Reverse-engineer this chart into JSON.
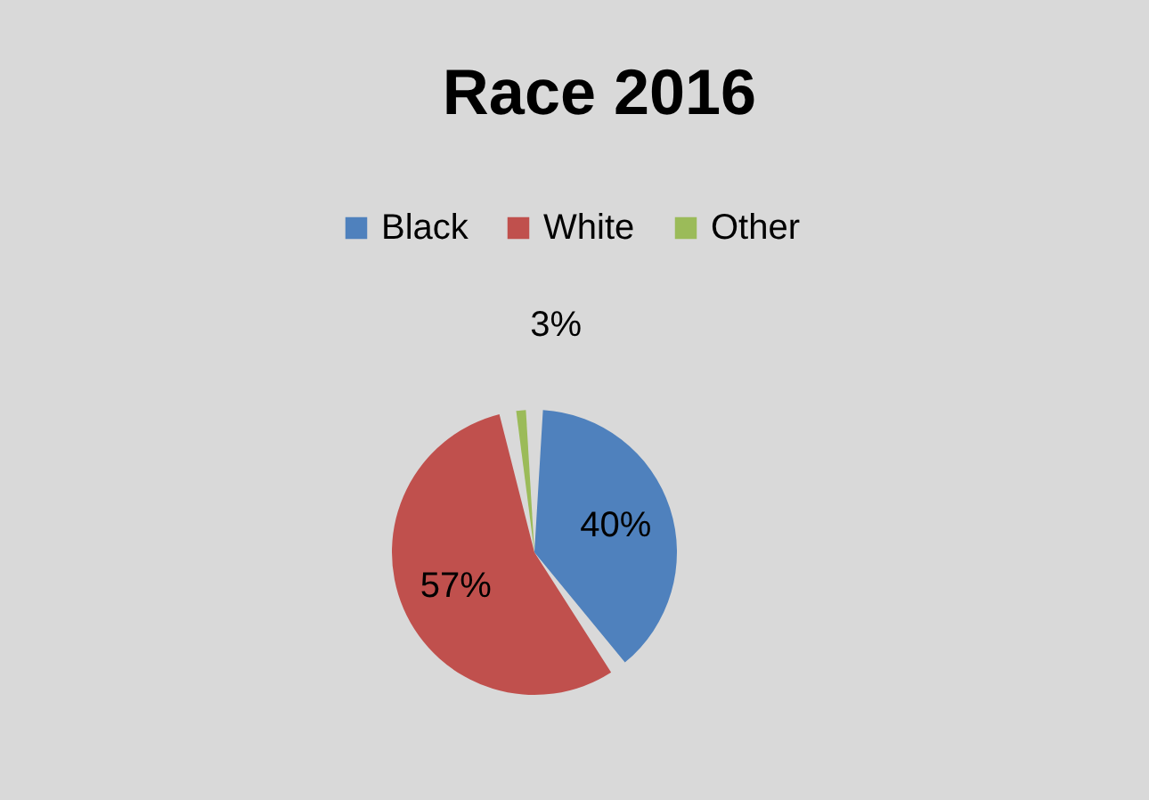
{
  "chart_data": {
    "type": "pie",
    "title": "Race 2016",
    "categories": [
      "Black",
      "White",
      "Other"
    ],
    "values": [
      40,
      57,
      3
    ],
    "value_labels": [
      "40%",
      "57%",
      "3%"
    ],
    "colors": [
      "#4f81bd",
      "#c0504d",
      "#9bbb59"
    ],
    "legend": "top"
  }
}
